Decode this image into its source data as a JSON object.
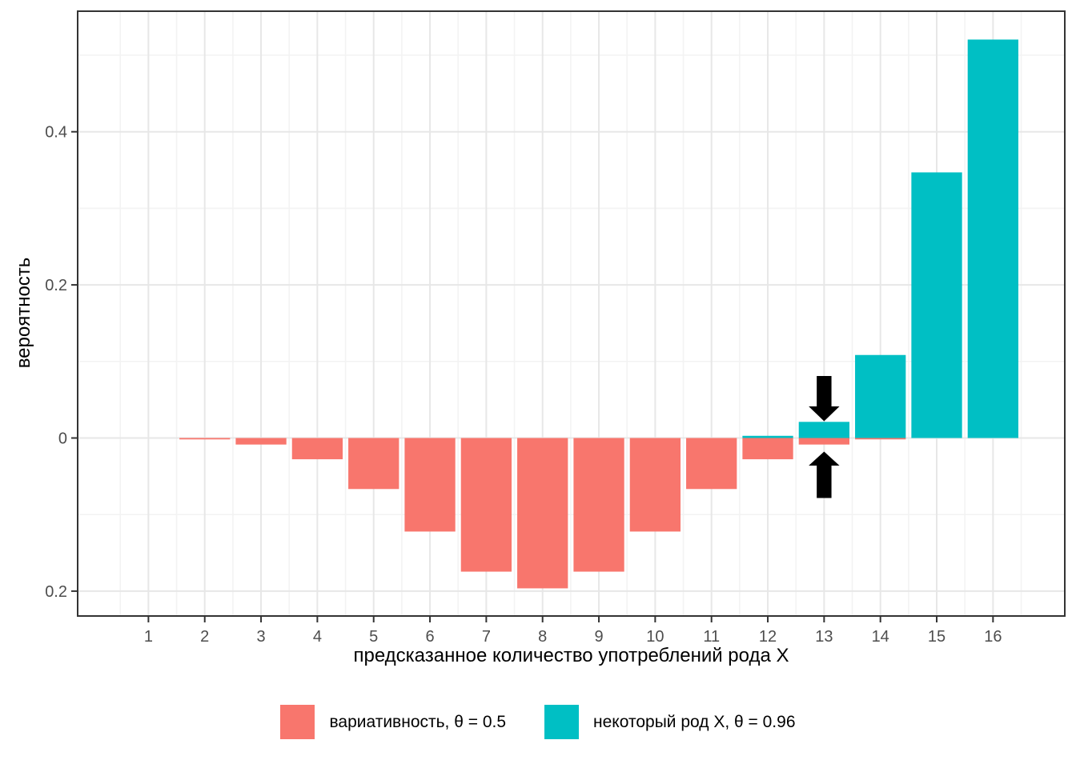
{
  "chart_data": {
    "type": "bar",
    "variant": "mirrored-pyramid",
    "title": "",
    "xlabel": "предсказанное количество употреблений рода X",
    "ylabel": "вероятность",
    "x": [
      1,
      2,
      3,
      4,
      5,
      6,
      7,
      8,
      9,
      10,
      11,
      12,
      13,
      14,
      15,
      16
    ],
    "x_tick_labels": [
      "1",
      "2",
      "3",
      "4",
      "5",
      "6",
      "7",
      "8",
      "9",
      "10",
      "11",
      "12",
      "13",
      "14",
      "15",
      "16"
    ],
    "y_ticks": [
      {
        "value": 0.4,
        "label": "0.4"
      },
      {
        "value": 0.2,
        "label": "0.2"
      },
      {
        "value": 0.0,
        "label": "0"
      },
      {
        "value": -0.2,
        "label": "0.2"
      }
    ],
    "y_minor_gridlines": [
      0.5,
      0.3,
      0.1,
      -0.1
    ],
    "ylim": [
      -0.232,
      0.557
    ],
    "series": [
      {
        "name": "вариативность, θ = 0.5",
        "color": "#F8766D",
        "direction": "down",
        "values": [
          0.00024,
          0.00183,
          0.00854,
          0.02777,
          0.06665,
          0.12219,
          0.17456,
          0.19638,
          0.17456,
          0.12219,
          0.06665,
          0.02777,
          0.00854,
          0.00183,
          0.00024,
          2e-05
        ]
      },
      {
        "name": "некоторый род X, θ = 0.96",
        "color": "#00BFC4",
        "direction": "up",
        "values": [
          0,
          0,
          0,
          0,
          0,
          0,
          0,
          0,
          0,
          2e-05,
          0.00029,
          0.00285,
          0.02108,
          0.10842,
          0.34695,
          0.52043
        ]
      }
    ],
    "annotations": [
      {
        "shape": "arrow-down",
        "x": 13,
        "color": "#000000"
      },
      {
        "shape": "arrow-up",
        "x": 13,
        "color": "#000000"
      }
    ],
    "grid": {
      "major_color": "#E7E7E7",
      "minor_color": "#F3F3F3",
      "background": "#FFFFFF"
    },
    "legend_position": "bottom"
  },
  "axis": {
    "tick_color": "#333333",
    "tick_label_color": "#4d4d4d",
    "panel_border_color": "#333333"
  },
  "legend": {
    "items": [
      {
        "label": "вариативность, θ = 0.5",
        "color": "#F8766D"
      },
      {
        "label": "некоторый род X, θ = 0.96",
        "color": "#00BFC4"
      }
    ]
  }
}
